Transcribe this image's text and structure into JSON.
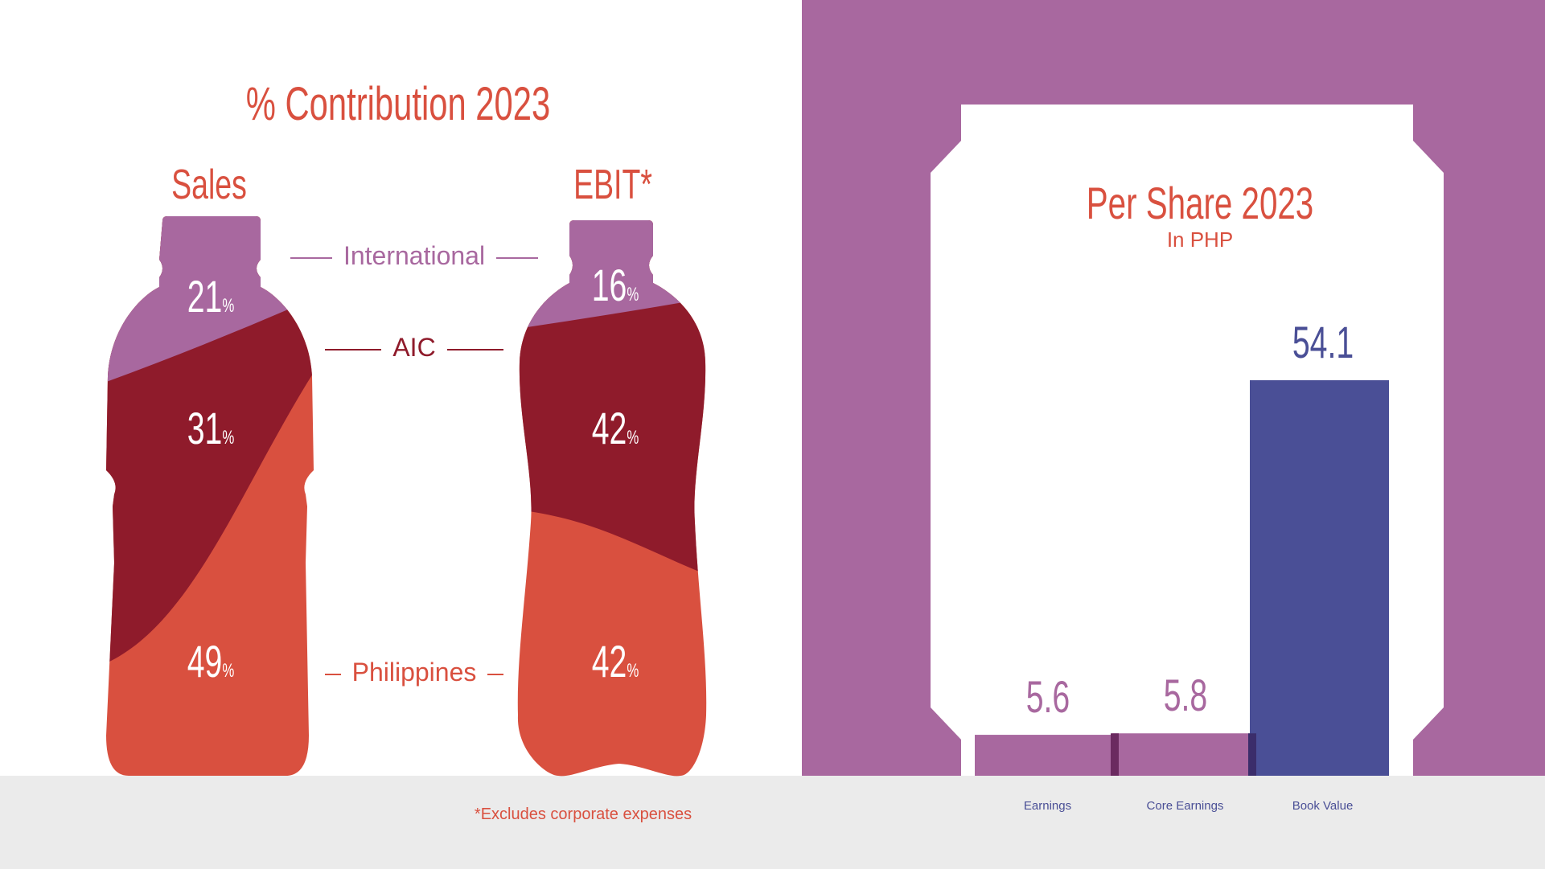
{
  "left_chart": {
    "title": "% Contribution 2023",
    "columns": [
      "Sales",
      "EBIT*"
    ],
    "legend": {
      "international": "International",
      "aic": "AIC",
      "philippines": "Philippines"
    },
    "footnote": "*Excludes corporate expenses",
    "colors": {
      "international": "#a8689f",
      "aic": "#8f1b2b",
      "philippines": "#d9503f"
    }
  },
  "right_chart": {
    "title": "Per Share 2023",
    "subtitle": "In PHP",
    "colors": {
      "earnings": "#a8689f",
      "book_value": "#4a4f96",
      "panel": "#a8689f"
    }
  },
  "chart_data": [
    {
      "type": "bar",
      "title": "% Contribution 2023",
      "categories": [
        "Sales",
        "EBIT*"
      ],
      "series": [
        {
          "name": "International",
          "values": [
            21,
            16
          ]
        },
        {
          "name": "AIC",
          "values": [
            31,
            42
          ]
        },
        {
          "name": "Philippines",
          "values": [
            49,
            42
          ]
        }
      ],
      "unit": "%"
    },
    {
      "type": "bar",
      "title": "Per Share 2023",
      "subtitle": "In PHP",
      "categories": [
        "Earnings",
        "Core Earnings",
        "Book Value"
      ],
      "values": [
        5.6,
        5.8,
        54.1
      ],
      "value_labels": [
        "5.6",
        "5.8",
        "54.1"
      ],
      "ylim": [
        0,
        54.1
      ]
    }
  ]
}
